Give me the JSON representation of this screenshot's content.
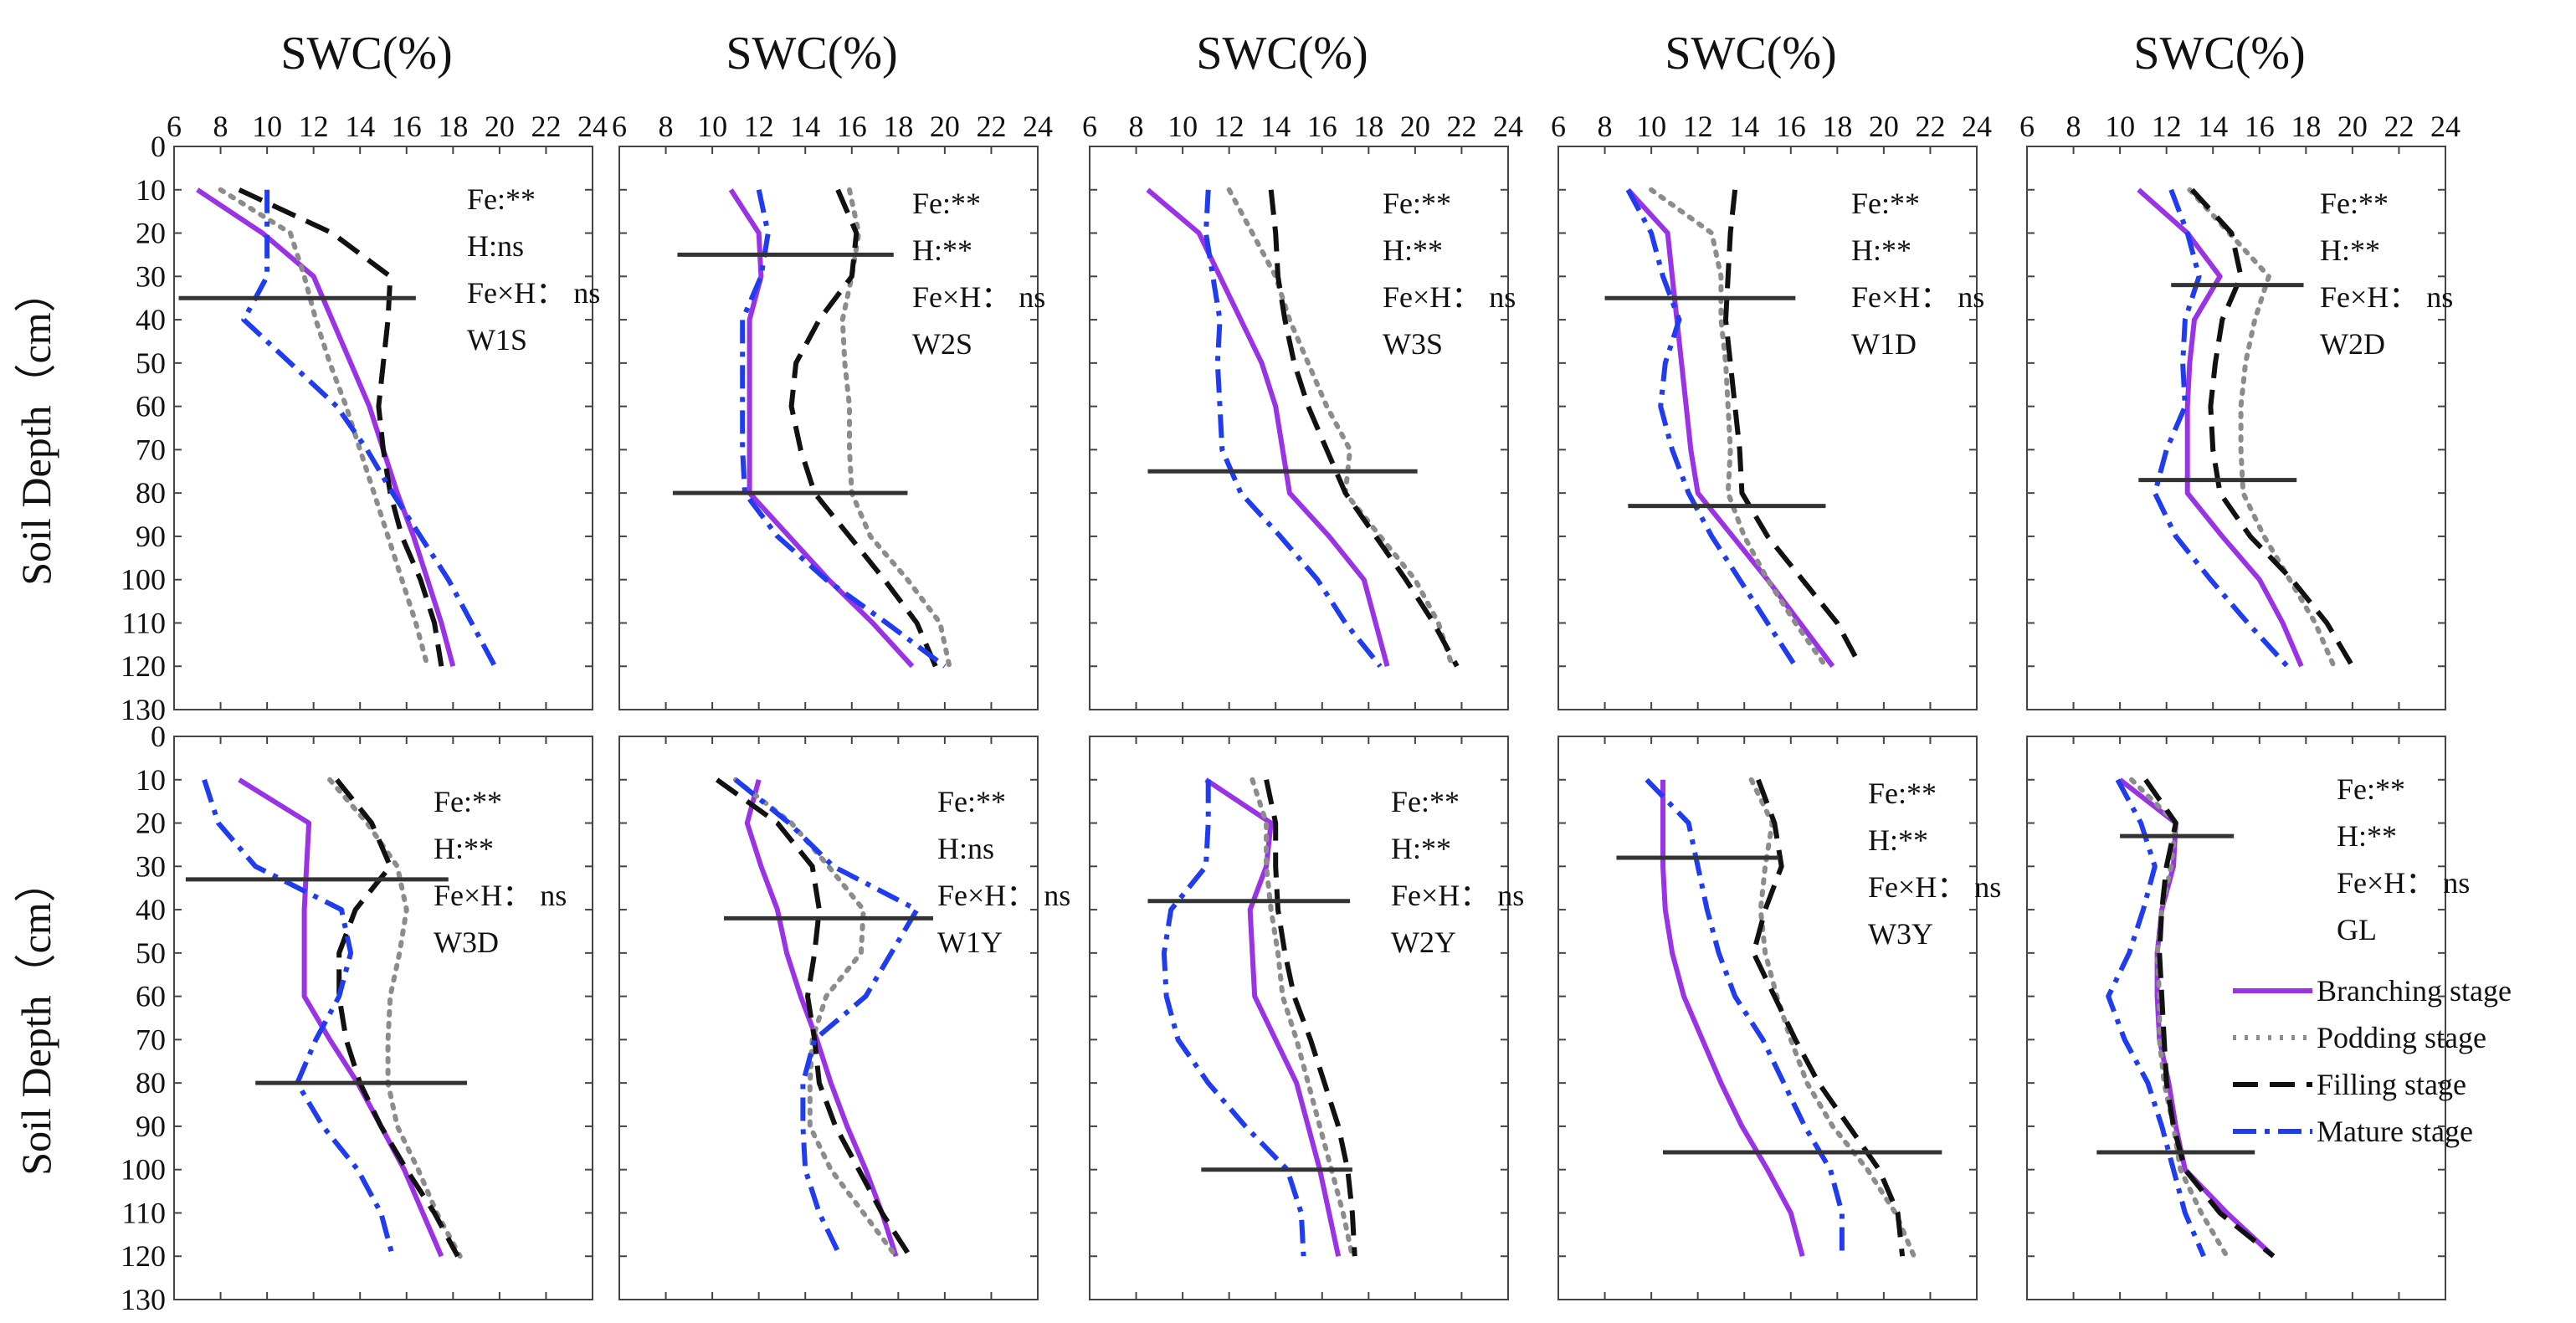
{
  "chart_data": {
    "type": "line",
    "column_title": "SWC(%)",
    "ylabel": "Soil Depth（cm）",
    "x_ticks": [
      6,
      8,
      10,
      12,
      14,
      16,
      18,
      20,
      22,
      24
    ],
    "y_ticks": [
      0,
      10,
      20,
      30,
      40,
      50,
      60,
      70,
      80,
      90,
      100,
      110,
      120,
      130
    ],
    "xlim": [
      6,
      24
    ],
    "ylim": [
      0,
      130
    ],
    "depths": [
      10,
      20,
      30,
      40,
      50,
      60,
      70,
      80,
      90,
      100,
      110,
      120
    ],
    "series_styles": [
      {
        "name": "Branching stage",
        "color": "#9a32e6",
        "dash": "",
        "width": 6
      },
      {
        "name": "Podding stage",
        "color": "#8c8c8c",
        "dash": "4 10",
        "width": 6
      },
      {
        "name": "Filling stage",
        "color": "#111111",
        "dash": "30 14",
        "width": 6
      },
      {
        "name": "Mature stage",
        "color": "#1f3cf0",
        "dash": "28 10 6 10",
        "width": 6
      }
    ],
    "panels": [
      {
        "label": "W1S",
        "fe": "Fe:**",
        "h": "H:ns",
        "feh": "Fe×H： ns",
        "hlines": [
          {
            "y": 35,
            "x0": 6.2,
            "x1": 16.4
          }
        ],
        "series": [
          {
            "name": "Branching stage",
            "values": [
              7.0,
              9.8,
              12.0,
              12.8,
              13.6,
              14.4,
              15.0,
              15.6,
              16.3,
              16.9,
              17.5,
              18.0
            ]
          },
          {
            "name": "Podding stage",
            "values": [
              8.0,
              11.0,
              11.6,
              12.1,
              12.7,
              13.4,
              14.0,
              14.6,
              15.2,
              15.8,
              16.4,
              16.9
            ]
          },
          {
            "name": "Filling stage",
            "values": [
              8.8,
              12.8,
              15.3,
              15.2,
              15.0,
              14.8,
              15.0,
              15.3,
              15.8,
              16.6,
              17.2,
              17.5
            ]
          },
          {
            "name": "Mature stage",
            "values": [
              10.0,
              10.0,
              10.0,
              9.0,
              11.0,
              13.0,
              14.3,
              15.4,
              16.6,
              17.8,
              18.8,
              19.8
            ]
          }
        ]
      },
      {
        "label": "W2S",
        "fe": "Fe:**",
        "h": "H:**",
        "feh": "Fe×H： ns",
        "hlines": [
          {
            "y": 25,
            "x0": 8.5,
            "x1": 17.8
          },
          {
            "y": 80,
            "x0": 8.3,
            "x1": 18.4
          }
        ],
        "series": [
          {
            "name": "Branching stage",
            "values": [
              10.8,
              12.0,
              12.1,
              11.6,
              11.6,
              11.6,
              11.6,
              11.6,
              13.3,
              15.0,
              16.9,
              18.6
            ]
          },
          {
            "name": "Podding stage",
            "values": [
              15.9,
              16.3,
              16.0,
              15.6,
              15.7,
              15.9,
              15.9,
              16.0,
              16.8,
              18.4,
              19.8,
              20.2
            ]
          },
          {
            "name": "Filling stage",
            "values": [
              15.4,
              16.2,
              16.0,
              14.6,
              13.6,
              13.4,
              13.8,
              14.4,
              15.9,
              17.4,
              18.8,
              19.6
            ]
          },
          {
            "name": "Mature stage",
            "values": [
              12.0,
              12.4,
              12.1,
              11.3,
              11.3,
              11.3,
              11.3,
              11.4,
              12.8,
              14.9,
              17.5,
              20.0
            ]
          }
        ]
      },
      {
        "label": "W3S",
        "fe": "Fe:**",
        "h": "H:**",
        "feh": "Fe×H： ns",
        "hlines": [
          {
            "y": 75,
            "x0": 8.5,
            "x1": 20.1
          }
        ],
        "series": [
          {
            "name": "Branching stage",
            "values": [
              8.5,
              10.7,
              11.6,
              12.5,
              13.4,
              14.0,
              14.3,
              14.6,
              16.3,
              17.8,
              18.3,
              18.8
            ]
          },
          {
            "name": "Podding stage",
            "values": [
              12.0,
              13.0,
              14.0,
              14.6,
              15.4,
              16.2,
              17.2,
              17.0,
              18.5,
              20.0,
              21.0,
              21.6
            ]
          },
          {
            "name": "Filling stage",
            "values": [
              13.8,
              14.0,
              14.1,
              14.4,
              14.8,
              15.4,
              16.2,
              17.0,
              18.3,
              19.6,
              20.8,
              21.8
            ]
          },
          {
            "name": "Mature stage",
            "values": [
              11.1,
              11.0,
              11.3,
              11.6,
              11.5,
              11.6,
              11.7,
              12.5,
              14.2,
              15.8,
              17.0,
              18.5
            ]
          }
        ]
      },
      {
        "label": "W1D",
        "fe": "Fe:**",
        "h": "H:**",
        "feh": "Fe×H： ns",
        "hlines": [
          {
            "y": 35,
            "x0": 8.0,
            "x1": 16.2
          },
          {
            "y": 83,
            "x0": 9.0,
            "x1": 17.5
          }
        ],
        "series": [
          {
            "name": "Branching stage",
            "values": [
              9.0,
              10.7,
              10.9,
              11.1,
              11.3,
              11.5,
              11.7,
              12.0,
              13.5,
              15.0,
              16.4,
              17.8
            ]
          },
          {
            "name": "Podding stage",
            "values": [
              10.0,
              12.6,
              13.0,
              13.0,
              13.2,
              13.3,
              13.4,
              13.3,
              14.0,
              15.0,
              16.2,
              17.5
            ]
          },
          {
            "name": "Filling stage",
            "values": [
              13.6,
              13.4,
              13.3,
              13.2,
              13.4,
              13.6,
              13.8,
              13.9,
              15.0,
              16.5,
              18.0,
              19.0
            ]
          },
          {
            "name": "Mature stage",
            "values": [
              9.0,
              10.0,
              10.5,
              11.2,
              10.6,
              10.4,
              10.9,
              11.6,
              12.6,
              13.8,
              15.0,
              16.2
            ]
          }
        ]
      },
      {
        "label": "W2D",
        "fe": "Fe:**",
        "h": "H:**",
        "feh": "Fe×H： ns",
        "hlines": [
          {
            "y": 32,
            "x0": 12.2,
            "x1": 17.9
          },
          {
            "y": 77,
            "x0": 10.8,
            "x1": 17.6
          }
        ],
        "series": [
          {
            "name": "Branching stage",
            "values": [
              10.8,
              12.9,
              14.3,
              13.2,
              13.0,
              12.9,
              12.9,
              12.9,
              14.4,
              16.0,
              17.0,
              17.8
            ]
          },
          {
            "name": "Podding stage",
            "values": [
              13.0,
              14.7,
              16.4,
              15.8,
              15.4,
              15.2,
              15.2,
              15.3,
              16.2,
              17.3,
              18.4,
              19.2
            ]
          },
          {
            "name": "Filling stage",
            "values": [
              13.1,
              14.8,
              15.2,
              14.4,
              14.1,
              13.9,
              14.0,
              14.3,
              15.6,
              17.4,
              18.9,
              20.0
            ]
          },
          {
            "name": "Mature stage",
            "values": [
              12.2,
              12.9,
              13.4,
              12.8,
              12.7,
              12.8,
              12.0,
              11.5,
              12.4,
              13.9,
              15.5,
              17.2
            ]
          }
        ]
      },
      {
        "label": "W3D",
        "fe": "Fe:**",
        "h": "H:**",
        "feh": "Fe×H： ns",
        "hlines": [
          {
            "y": 33,
            "x0": 6.5,
            "x1": 17.8
          },
          {
            "y": 80,
            "x0": 9.5,
            "x1": 18.6
          }
        ],
        "series": [
          {
            "name": "Branching stage",
            "values": [
              8.8,
              11.8,
              11.7,
              11.6,
              11.6,
              11.6,
              12.7,
              13.9,
              14.9,
              15.9,
              16.7,
              17.5
            ]
          },
          {
            "name": "Podding stage",
            "values": [
              12.7,
              14.3,
              15.6,
              16.0,
              15.7,
              15.3,
              15.2,
              15.2,
              15.6,
              16.5,
              17.3,
              18.3
            ]
          },
          {
            "name": "Filling stage",
            "values": [
              13.0,
              14.5,
              15.3,
              13.8,
              13.1,
              13.1,
              13.4,
              14.0,
              14.9,
              16.0,
              17.2,
              18.2
            ]
          },
          {
            "name": "Mature stage",
            "values": [
              7.3,
              7.9,
              9.5,
              13.2,
              13.6,
              13.1,
              12.1,
              11.3,
              12.4,
              13.9,
              14.9,
              15.4
            ]
          }
        ]
      },
      {
        "label": "W1Y",
        "fe": "Fe:**",
        "h": "H:ns",
        "feh": "Fe×H： ns",
        "hlines": [
          {
            "y": 42,
            "x0": 10.5,
            "x1": 19.5
          }
        ],
        "series": [
          {
            "name": "Branching stage",
            "values": [
              12.0,
              11.5,
              12.1,
              12.8,
              13.2,
              13.8,
              14.5,
              15.1,
              15.8,
              16.6,
              17.3,
              17.9
            ]
          },
          {
            "name": "Podding stage",
            "values": [
              11.0,
              13.4,
              15.0,
              16.5,
              16.4,
              14.9,
              14.3,
              14.2,
              14.2,
              15.1,
              16.5,
              17.9
            ]
          },
          {
            "name": "Filling stage",
            "values": [
              10.2,
              12.8,
              14.3,
              14.6,
              14.4,
              14.1,
              14.4,
              14.6,
              15.3,
              16.3,
              17.3,
              18.5
            ]
          },
          {
            "name": "Mature stage",
            "values": [
              11.0,
              13.3,
              15.2,
              18.8,
              17.7,
              16.6,
              14.4,
              13.9,
              13.9,
              14.0,
              14.6,
              15.5
            ]
          }
        ]
      },
      {
        "label": "W2Y",
        "fe": "Fe:**",
        "h": "H:**",
        "feh": "Fe×H： ns",
        "hlines": [
          {
            "y": 38,
            "x0": 8.5,
            "x1": 17.2
          },
          {
            "y": 100,
            "x0": 10.8,
            "x1": 17.3
          }
        ],
        "series": [
          {
            "name": "Branching stage",
            "values": [
              11.0,
              13.8,
              13.6,
              12.9,
              13.0,
              13.1,
              14.0,
              14.9,
              15.4,
              15.9,
              16.3,
              16.7
            ]
          },
          {
            "name": "Podding stage",
            "values": [
              13.0,
              13.6,
              13.6,
              13.8,
              14.1,
              14.3,
              14.9,
              15.4,
              15.9,
              16.4,
              16.9,
              17.3
            ]
          },
          {
            "name": "Filling stage",
            "values": [
              13.6,
              14.0,
              14.0,
              14.1,
              14.4,
              14.8,
              15.5,
              16.1,
              16.7,
              17.1,
              17.3,
              17.4
            ]
          },
          {
            "name": "Mature stage",
            "values": [
              11.1,
              11.1,
              11.0,
              9.5,
              9.2,
              9.3,
              9.8,
              11.1,
              12.7,
              14.5,
              15.1,
              15.2
            ]
          }
        ]
      },
      {
        "label": "W3Y",
        "fe": "Fe:**",
        "h": "H:**",
        "feh": "Fe×H： ns",
        "hlines": [
          {
            "y": 28,
            "x0": 8.5,
            "x1": 15.5
          },
          {
            "y": 96,
            "x0": 10.5,
            "x1": 22.5
          }
        ],
        "series": [
          {
            "name": "Branching stage",
            "values": [
              10.5,
              10.5,
              10.5,
              10.6,
              10.9,
              11.4,
              12.2,
              13.0,
              13.9,
              15.0,
              16.0,
              16.5
            ]
          },
          {
            "name": "Podding stage",
            "values": [
              14.3,
              15.2,
              14.9,
              14.7,
              14.9,
              15.4,
              16.0,
              16.7,
              17.8,
              19.3,
              20.5,
              21.3
            ]
          },
          {
            "name": "Filling stage",
            "values": [
              14.6,
              15.3,
              15.6,
              14.9,
              14.4,
              15.3,
              16.2,
              17.2,
              18.5,
              19.8,
              20.6,
              20.8
            ]
          },
          {
            "name": "Mature stage",
            "values": [
              9.8,
              11.6,
              12.0,
              12.4,
              12.9,
              13.6,
              14.8,
              15.7,
              16.6,
              17.7,
              18.2,
              18.2
            ]
          }
        ]
      },
      {
        "label": "GL",
        "fe": "Fe:**",
        "h": "H:**",
        "feh": "Fe×H： ns",
        "hlines": [
          {
            "y": 23,
            "x0": 10.0,
            "x1": 14.9
          },
          {
            "y": 96,
            "x0": 9.0,
            "x1": 15.8
          }
        ],
        "series": [
          {
            "name": "Branching stage",
            "values": [
              10.0,
              12.4,
              12.3,
              11.8,
              11.6,
              11.6,
              11.7,
              12.1,
              12.4,
              12.8,
              14.6,
              16.6
            ]
          },
          {
            "name": "Podding stage",
            "values": [
              10.5,
              12.4,
              12.2,
              11.8,
              11.6,
              11.7,
              11.7,
              11.9,
              12.3,
              12.6,
              13.5,
              14.6
            ]
          },
          {
            "name": "Filling stage",
            "values": [
              11.1,
              12.4,
              12.0,
              11.8,
              11.7,
              11.8,
              11.9,
              12.0,
              12.3,
              12.8,
              14.3,
              16.6
            ]
          },
          {
            "name": "Mature stage",
            "values": [
              9.9,
              10.9,
              11.5,
              11.0,
              10.4,
              9.5,
              10.2,
              11.2,
              11.8,
              12.3,
              12.8,
              13.6
            ]
          }
        ]
      }
    ],
    "legend": {
      "position": "bottom-right",
      "items": [
        "Branching stage",
        "Podding stage",
        "Filling stage",
        "Mature stage"
      ]
    }
  }
}
